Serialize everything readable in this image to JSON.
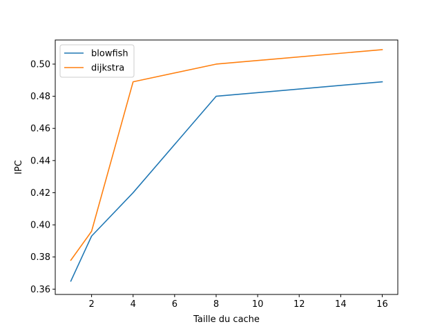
{
  "chart_data": {
    "type": "line",
    "title": "",
    "xlabel": "Taille du cache",
    "ylabel": "IPC",
    "xlim": [
      0.25,
      16.75
    ],
    "ylim": [
      0.3567,
      0.515
    ],
    "xticks": [
      2,
      4,
      6,
      8,
      10,
      12,
      14,
      16
    ],
    "xtick_labels": [
      "2",
      "4",
      "6",
      "8",
      "10",
      "12",
      "14",
      "16"
    ],
    "yticks": [
      0.36,
      0.38,
      0.4,
      0.42,
      0.44,
      0.46,
      0.48,
      0.5
    ],
    "ytick_labels": [
      "0.36",
      "0.38",
      "0.40",
      "0.42",
      "0.44",
      "0.46",
      "0.48",
      "0.50"
    ],
    "grid": false,
    "legend_position": "top-left",
    "x": [
      1,
      2,
      4,
      8,
      16
    ],
    "series": [
      {
        "name": "blowfish",
        "color": "#1f77b4",
        "values": [
          0.365,
          0.393,
          0.42,
          0.48,
          0.489
        ]
      },
      {
        "name": "dijkstra",
        "color": "#ff7f0e",
        "values": [
          0.378,
          0.396,
          0.489,
          0.5,
          0.509
        ]
      }
    ]
  }
}
